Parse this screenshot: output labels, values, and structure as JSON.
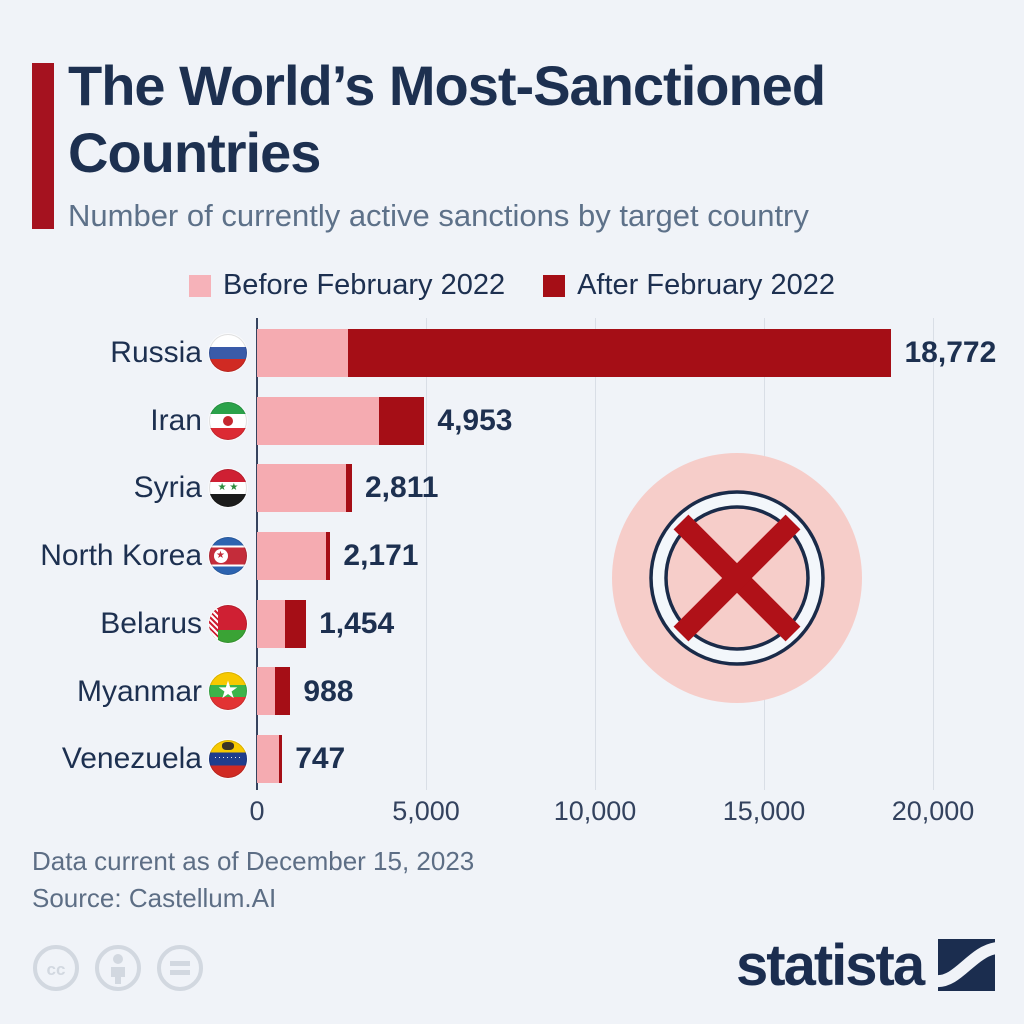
{
  "page": {
    "background_color": "#f0f3f8"
  },
  "header": {
    "title": "The World's Most-Sanctioned Countries",
    "title_line1": "The World’s Most-Sanctioned",
    "title_line2": "Countries",
    "subtitle": "Number of currently active sanctions by target country",
    "accent_color": "#a5121f"
  },
  "chart_data": {
    "type": "bar",
    "orientation": "horizontal",
    "title": "The World's Most-Sanctioned Countries",
    "subtitle": "Number of currently active sanctions by target country",
    "categories": [
      "Russia",
      "Iran",
      "Syria",
      "North Korea",
      "Belarus",
      "Myanmar",
      "Venezuela"
    ],
    "flags": [
      "russia",
      "iran",
      "syria",
      "north-korea",
      "belarus",
      "myanmar",
      "venezuela"
    ],
    "totals": [
      18772,
      4953,
      2811,
      2171,
      1454,
      988,
      747
    ],
    "total_labels": [
      "18,772",
      "4,953",
      "2,811",
      "2,171",
      "1,454",
      "988",
      "747"
    ],
    "series": [
      {
        "name": "Before February 2022",
        "color": "#f5abb1",
        "values": [
          2680,
          3620,
          2630,
          2030,
          820,
          525,
          650
        ]
      },
      {
        "name": "After February 2022",
        "color": "#a50e16",
        "values": [
          16092,
          1333,
          181,
          141,
          634,
          463,
          97
        ]
      }
    ],
    "xlim": [
      0,
      20000
    ],
    "x_ticks": [
      {
        "value": 0,
        "label": "0"
      },
      {
        "value": 5000,
        "label": "5,000"
      },
      {
        "value": 10000,
        "label": "10,000"
      },
      {
        "value": 15000,
        "label": "15,000"
      },
      {
        "value": 20000,
        "label": "20,000"
      }
    ],
    "grid": "vertical",
    "legend_position": "top"
  },
  "legend": {
    "items": [
      {
        "label": "Before February 2022",
        "color": "#f6b2b9"
      },
      {
        "label": "After February 2022",
        "color": "#a50e16"
      }
    ]
  },
  "decoration": {
    "name": "crossed-out-circle",
    "outer_circle_color": "#f6cdc9",
    "ring_color": "#1a2b49",
    "ring_fill_color": "#f3f7fb",
    "x_color": "#b01118"
  },
  "footer": {
    "note": "Data current as of December 15, 2023",
    "source": "Source: Castellum.AI",
    "license_icons": [
      "cc-icon",
      "attribution-person-icon",
      "equals-icon"
    ],
    "icon_color": "#d2d8e0"
  },
  "branding": {
    "wordmark": "statista",
    "logo_color": "#1b2d4f"
  }
}
